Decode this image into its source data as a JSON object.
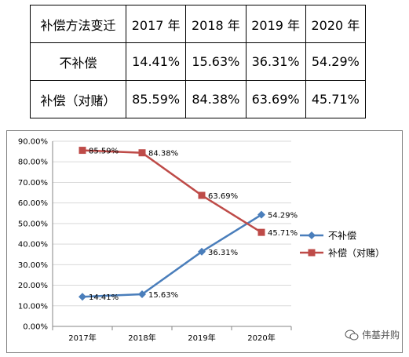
{
  "table": {
    "headers": [
      "补偿方法变迁",
      "2017 年",
      "2018 年",
      "2019 年",
      "2020 年"
    ],
    "rows": [
      [
        "不补偿",
        "14.41%",
        "15.63%",
        "36.31%",
        "54.29%"
      ],
      [
        "补偿（对赌）",
        "85.59%",
        "84.38%",
        "63.69%",
        "45.71%"
      ]
    ]
  },
  "watermark": {
    "text": "伟基并购",
    "icon": "wechat-icon"
  },
  "chart_data": {
    "type": "line",
    "categories": [
      "2017年",
      "2018年",
      "2019年",
      "2020年"
    ],
    "ylim": [
      0,
      90
    ],
    "yticks": [
      "0.00%",
      "10.00%",
      "20.00%",
      "30.00%",
      "40.00%",
      "50.00%",
      "60.00%",
      "70.00%",
      "80.00%",
      "90.00%"
    ],
    "grid": true,
    "legend_position": "right",
    "series": [
      {
        "name": "不补偿",
        "values": [
          14.41,
          15.63,
          36.31,
          54.29
        ],
        "labels": [
          "14.41%",
          "15.63%",
          "36.31%",
          "54.29%"
        ],
        "color": "#4a7ebb",
        "marker": "diamond"
      },
      {
        "name": "补偿（对赌）",
        "values": [
          85.59,
          84.38,
          63.69,
          45.71
        ],
        "labels": [
          "85.59%",
          "84.38%",
          "63.69%",
          "45.71%"
        ],
        "color": "#be4b48",
        "marker": "square"
      }
    ]
  }
}
